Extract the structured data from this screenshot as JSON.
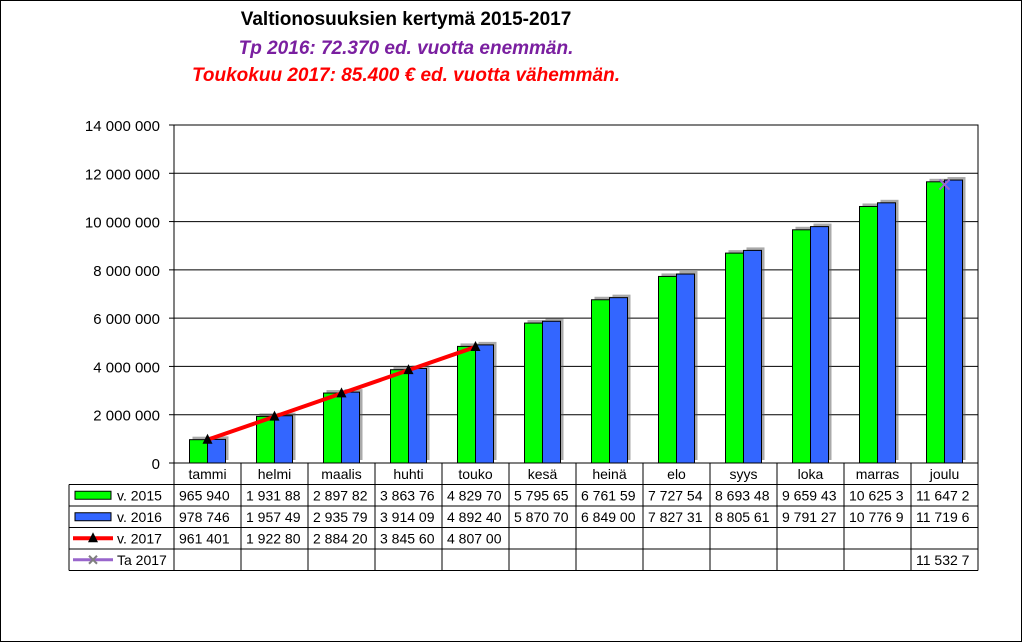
{
  "chart_data": {
    "type": "bar",
    "title": "Valtionosuuksien kertymä 2015-2017",
    "subtitles": [
      {
        "text": "Tp 2016: 72.370 ed. vuotta enemmän.",
        "color": "#7a1fa0"
      },
      {
        "text": "Toukokuu 2017: 85.400 € ed. vuotta vähemmän.",
        "color": "#ff0000"
      }
    ],
    "categories": [
      "tammi",
      "helmi",
      "maalis",
      "huhti",
      "touko",
      "kesä",
      "heinä",
      "elo",
      "syys",
      "loka",
      "marras",
      "joulu"
    ],
    "ylim": [
      0,
      14000000
    ],
    "yticks": [
      0,
      2000000,
      4000000,
      6000000,
      8000000,
      10000000,
      12000000,
      14000000
    ],
    "ytick_labels": [
      "0",
      "2 000 000",
      "4 000 000",
      "6 000 000",
      "8 000 000",
      "10 000 000",
      "12 000 000",
      "14 000 000"
    ],
    "grid": "horizontal",
    "series": [
      {
        "name": "v. 2015",
        "kind": "bar",
        "color": "#00ff00",
        "values": [
          965940,
          1931880,
          2897820,
          3863760,
          4829700,
          5795650,
          6761590,
          7727540,
          8693480,
          9659430,
          10625300,
          11647200
        ],
        "labels": [
          "965 940",
          "1 931 88",
          "2 897 82",
          "3 863 76",
          "4 829 70",
          "5 795 65",
          "6 761 59",
          "7 727 54",
          "8 693 48",
          "9 659 43",
          "10 625 3",
          "11 647 2"
        ]
      },
      {
        "name": "v. 2016",
        "kind": "bar",
        "color": "#3366ff",
        "values": [
          978746,
          1957490,
          2935790,
          3914090,
          4892400,
          5870700,
          6849000,
          7827310,
          8805610,
          9791270,
          10776900,
          11719600
        ],
        "labels": [
          "978 746",
          "1 957 49",
          "2 935 79",
          "3 914 09",
          "4 892 40",
          "5 870 70",
          "6 849 00",
          "7 827 31",
          "8 805 61",
          "9 791 27",
          "10 776 9",
          "11 719 6"
        ]
      },
      {
        "name": "v. 2017",
        "kind": "line",
        "color": "#ff0000",
        "marker": "triangle",
        "values": [
          961401,
          1922800,
          2884200,
          3845600,
          4807000,
          null,
          null,
          null,
          null,
          null,
          null,
          null
        ],
        "labels": [
          "961 401",
          "1 922 80",
          "2 884 20",
          "3 845 60",
          "4 807 00",
          "",
          "",
          "",
          "",
          "",
          "",
          ""
        ]
      },
      {
        "name": "Ta 2017",
        "kind": "marker",
        "color": "#9966cc",
        "marker": "x",
        "values": [
          null,
          null,
          null,
          null,
          null,
          null,
          null,
          null,
          null,
          null,
          null,
          11532700
        ],
        "labels": [
          "",
          "",
          "",
          "",
          "",
          "",
          "",
          "",
          "",
          "",
          "",
          "11 532 7"
        ]
      }
    ]
  }
}
